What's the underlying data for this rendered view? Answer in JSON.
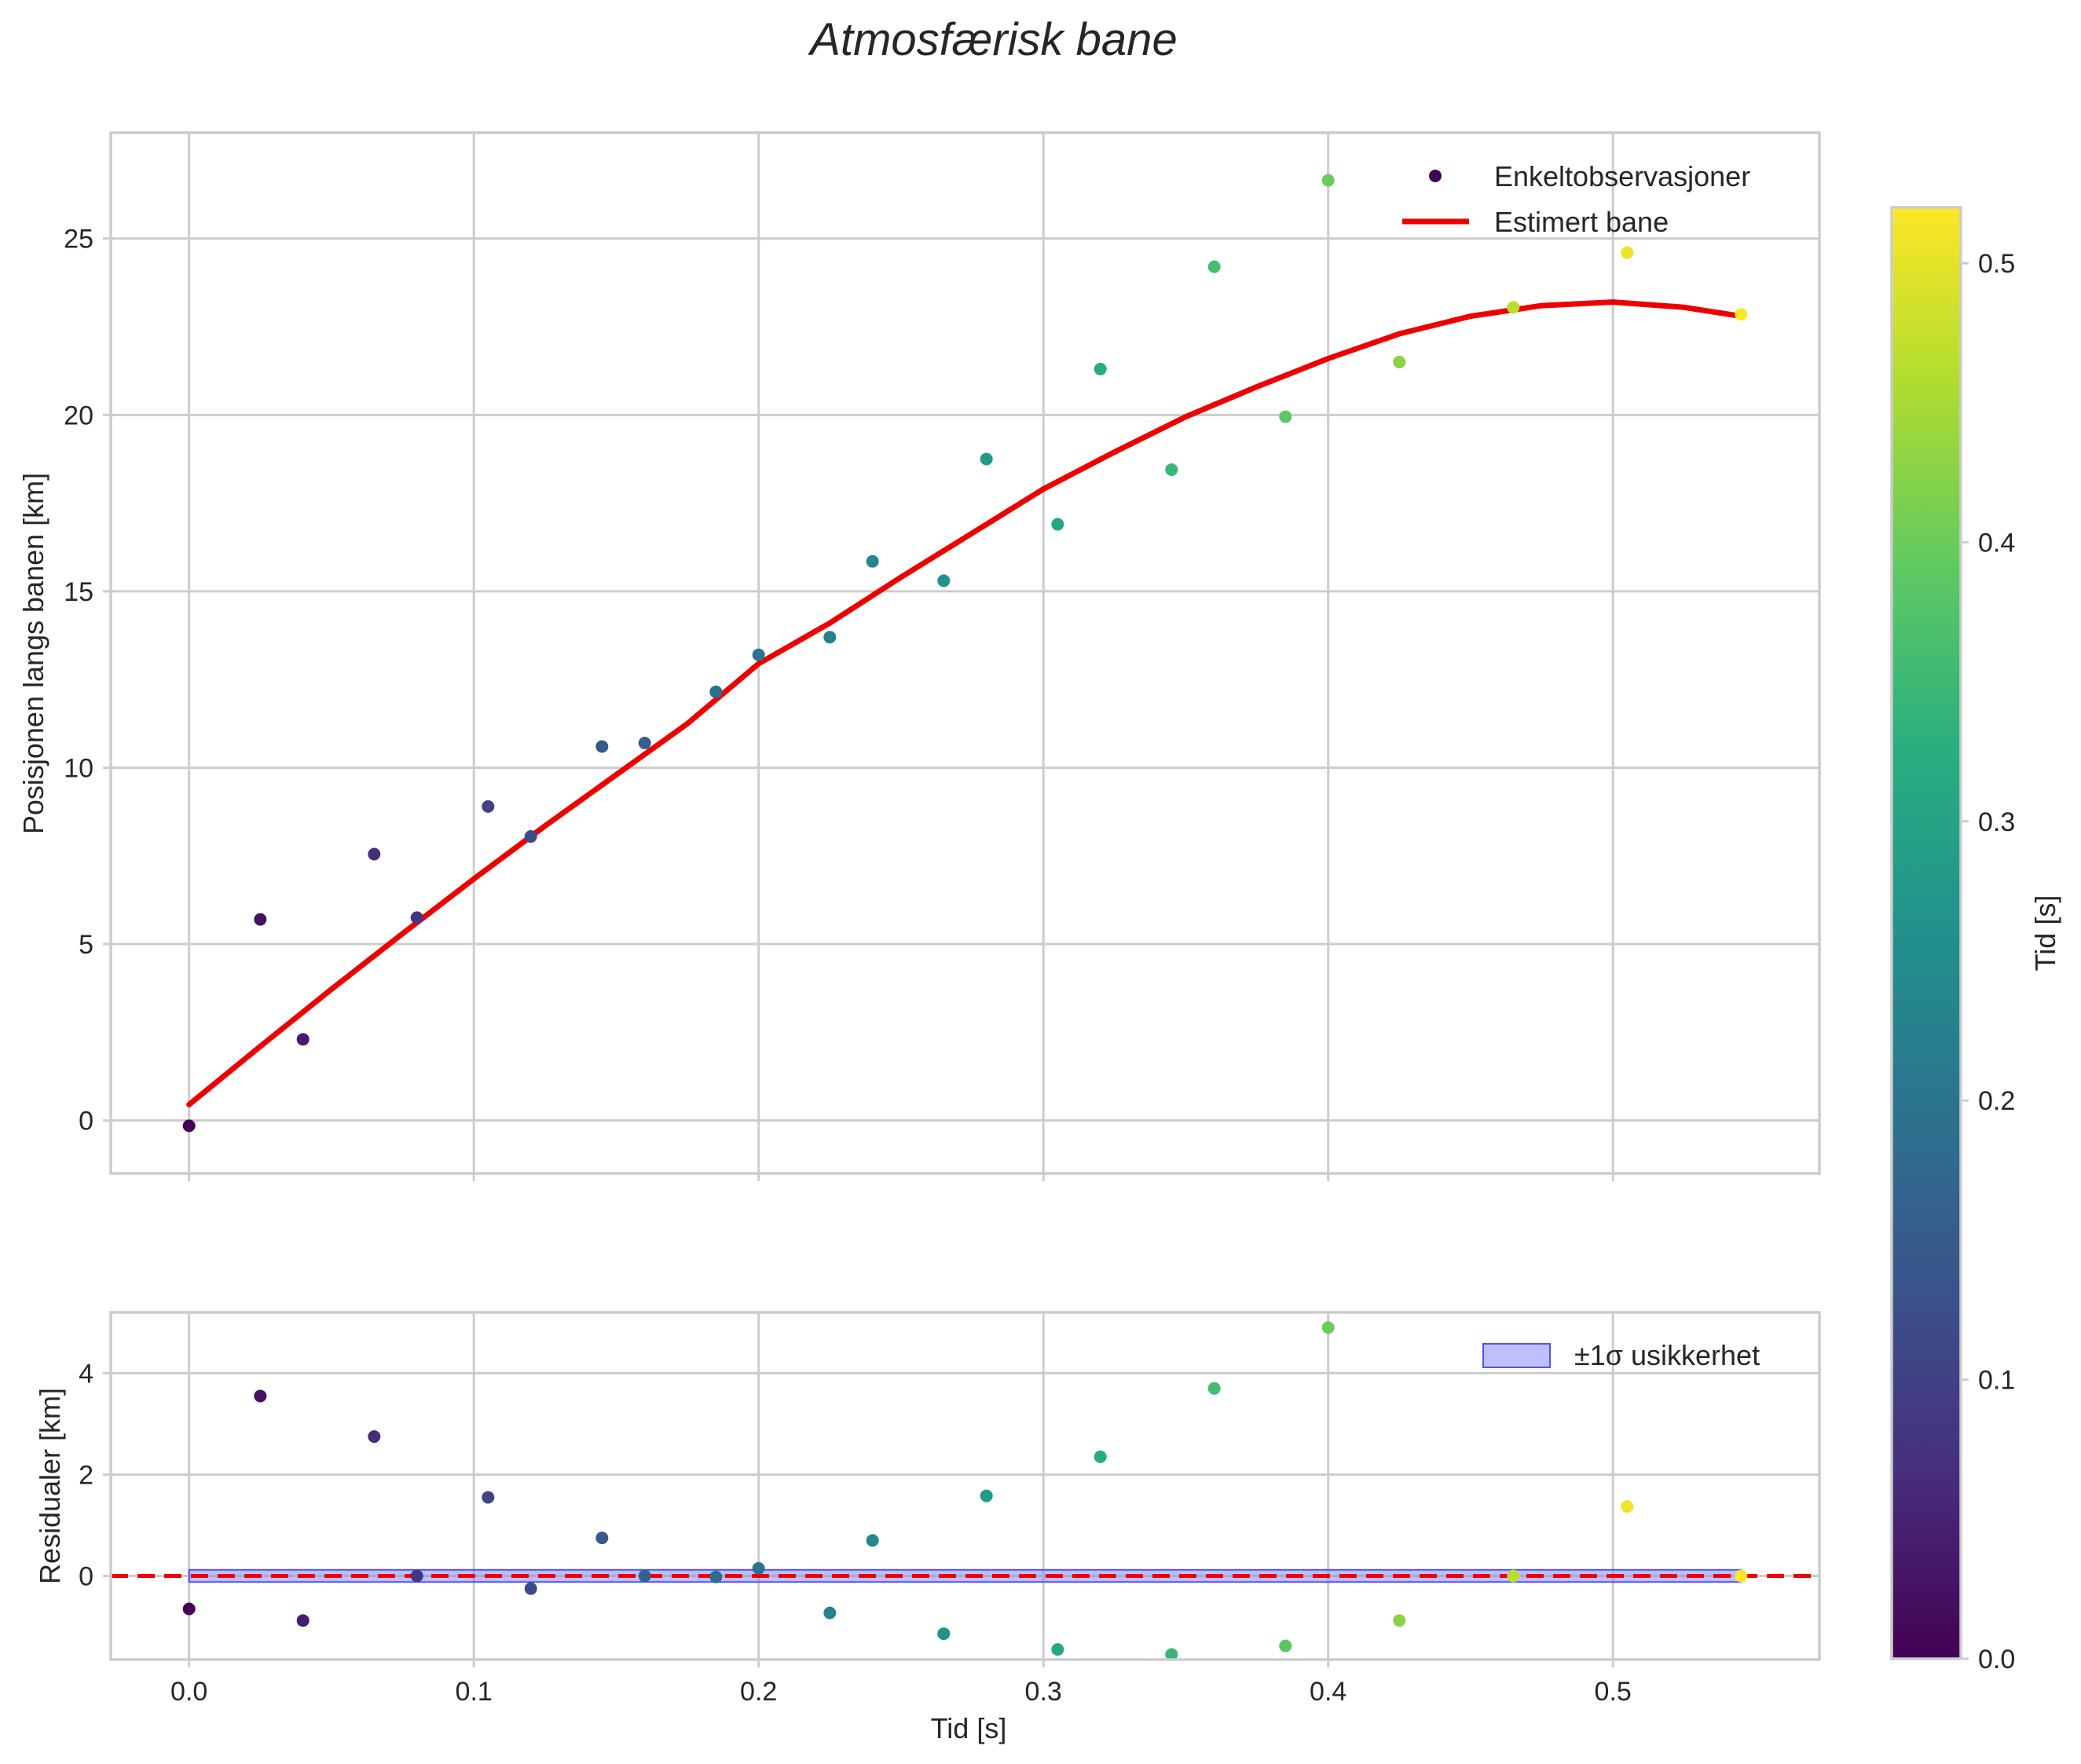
{
  "chart_data": {
    "type": "scatter",
    "title": "Atmosfærisk bane",
    "colormap": "viridis",
    "main": {
      "ylabel": "Posisjonen langs banen [km]",
      "xlim": [
        -0.0275,
        0.5725
      ],
      "ylim": [
        -1.5,
        28
      ],
      "xticks": [
        0.0,
        0.1,
        0.2,
        0.3,
        0.4,
        0.5
      ],
      "yticks": [
        0,
        5,
        10,
        15,
        20,
        25
      ],
      "ytick_labels": [
        "0",
        "5",
        "10",
        "15",
        "20",
        "25"
      ],
      "grid": true,
      "legend": "top-right",
      "observations_label": "Enkeltobservasjoner",
      "fit_label": "Estimert bane",
      "fit_color": "#ee0000",
      "fit_curve": [
        [
          0.0,
          0.45
        ],
        [
          0.025,
          2.1
        ],
        [
          0.05,
          3.72
        ],
        [
          0.075,
          5.3
        ],
        [
          0.1,
          6.85
        ],
        [
          0.125,
          8.35
        ],
        [
          0.15,
          9.8
        ],
        [
          0.175,
          11.25
        ],
        [
          0.2,
          12.95
        ],
        [
          0.225,
          14.1
        ],
        [
          0.25,
          15.4
        ],
        [
          0.275,
          16.65
        ],
        [
          0.3,
          17.9
        ],
        [
          0.325,
          18.95
        ],
        [
          0.35,
          19.95
        ],
        [
          0.375,
          20.8
        ],
        [
          0.4,
          21.6
        ],
        [
          0.425,
          22.3
        ],
        [
          0.45,
          22.8
        ],
        [
          0.475,
          23.1
        ],
        [
          0.5,
          23.2
        ],
        [
          0.525,
          23.05
        ],
        [
          0.545,
          22.8
        ]
      ],
      "points": [
        {
          "t": 0.0,
          "y": -0.15
        },
        {
          "t": 0.025,
          "y": 5.7
        },
        {
          "t": 0.04,
          "y": 2.3
        },
        {
          "t": 0.065,
          "y": 7.55
        },
        {
          "t": 0.08,
          "y": 5.75
        },
        {
          "t": 0.105,
          "y": 8.9
        },
        {
          "t": 0.12,
          "y": 8.05
        },
        {
          "t": 0.145,
          "y": 10.6
        },
        {
          "t": 0.16,
          "y": 10.7
        },
        {
          "t": 0.185,
          "y": 12.15
        },
        {
          "t": 0.2,
          "y": 13.2
        },
        {
          "t": 0.225,
          "y": 13.7
        },
        {
          "t": 0.24,
          "y": 15.85
        },
        {
          "t": 0.265,
          "y": 15.3
        },
        {
          "t": 0.28,
          "y": 18.75
        },
        {
          "t": 0.305,
          "y": 16.9
        },
        {
          "t": 0.32,
          "y": 21.3
        },
        {
          "t": 0.345,
          "y": 18.45
        },
        {
          "t": 0.36,
          "y": 24.2
        },
        {
          "t": 0.385,
          "y": 19.95
        },
        {
          "t": 0.4,
          "y": 26.65
        },
        {
          "t": 0.425,
          "y": 21.5
        },
        {
          "t": 0.465,
          "y": 23.05
        },
        {
          "t": 0.505,
          "y": 24.6
        },
        {
          "t": 0.545,
          "y": 22.85
        }
      ]
    },
    "residuals": {
      "xlabel": "Tid [s]",
      "ylabel": "Residualer [km]",
      "xlim": [
        -0.0275,
        0.5725
      ],
      "ylim": [
        -1.65,
        5.2
      ],
      "xticks": [
        0.0,
        0.1,
        0.2,
        0.3,
        0.4,
        0.5
      ],
      "xtick_labels": [
        "0.0",
        "0.1",
        "0.2",
        "0.3",
        "0.4",
        "0.5"
      ],
      "yticks": [
        0,
        2,
        4
      ],
      "ytick_labels": [
        "0",
        "2",
        "4"
      ],
      "grid": true,
      "legend": "top-right",
      "band_label": "±1σ usikkerhet",
      "band_sigma": 0.12,
      "band_color": "#8080ff",
      "zero_line_color": "#ee0000",
      "points": [
        {
          "t": 0.0,
          "r": -0.65
        },
        {
          "t": 0.025,
          "r": 3.55
        },
        {
          "t": 0.04,
          "r": -0.88
        },
        {
          "t": 0.065,
          "r": 2.75
        },
        {
          "t": 0.08,
          "r": 0.0
        },
        {
          "t": 0.105,
          "r": 1.55
        },
        {
          "t": 0.12,
          "r": -0.25
        },
        {
          "t": 0.145,
          "r": 0.75
        },
        {
          "t": 0.16,
          "r": 0.0
        },
        {
          "t": 0.185,
          "r": -0.02
        },
        {
          "t": 0.2,
          "r": 0.15
        },
        {
          "t": 0.225,
          "r": -0.73
        },
        {
          "t": 0.24,
          "r": 0.7
        },
        {
          "t": 0.265,
          "r": -1.14
        },
        {
          "t": 0.28,
          "r": 1.58
        },
        {
          "t": 0.305,
          "r": -1.45
        },
        {
          "t": 0.32,
          "r": 2.35
        },
        {
          "t": 0.345,
          "r": -1.55
        },
        {
          "t": 0.36,
          "r": 3.7
        },
        {
          "t": 0.385,
          "r": -1.38
        },
        {
          "t": 0.4,
          "r": 4.9
        },
        {
          "t": 0.425,
          "r": -0.88
        },
        {
          "t": 0.465,
          "r": 0.0
        },
        {
          "t": 0.505,
          "r": 1.37
        },
        {
          "t": 0.545,
          "r": 0.0
        }
      ]
    },
    "colorbar": {
      "label": "Tid [s]",
      "range": [
        0.0,
        0.52
      ],
      "ticks": [
        0.0,
        0.1,
        0.2,
        0.3,
        0.4,
        0.5
      ],
      "tick_labels": [
        "0.0",
        "0.1",
        "0.2",
        "0.3",
        "0.4",
        "0.5"
      ]
    }
  }
}
